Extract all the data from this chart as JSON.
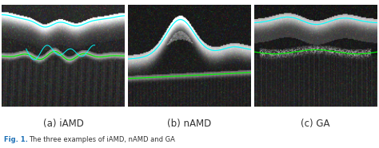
{
  "figure_width": 4.74,
  "figure_height": 1.86,
  "dpi": 100,
  "panels": [
    {
      "label": "(a) iAMD",
      "col": 0
    },
    {
      "label": "(b) nAMD",
      "col": 1
    },
    {
      "label": "(c) GA",
      "col": 2
    }
  ],
  "background_color": "#ffffff",
  "label_fontsize": 8.5,
  "label_color": "#333333",
  "caption_prefix_color": "#1a6eb5"
}
